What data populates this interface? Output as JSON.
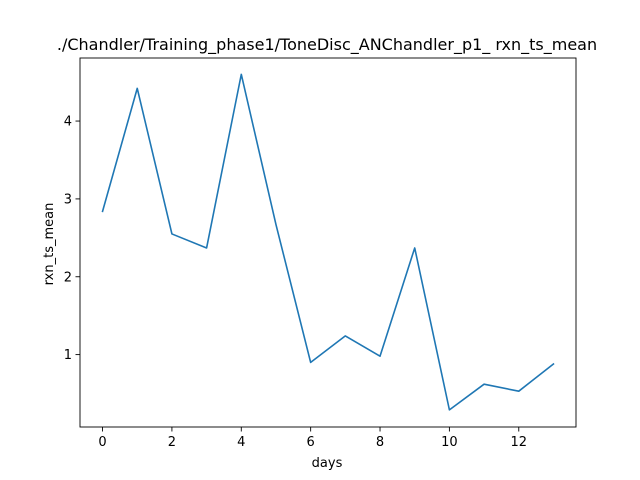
{
  "chart_data": {
    "type": "line",
    "title": "./Chandler/Training_phase1/ToneDisc_ANChandler_p1_ rxn_ts_mean",
    "xlabel": "days",
    "ylabel": "rxn_ts_mean",
    "xlim": [
      -0.65,
      13.65
    ],
    "ylim": [
      0.07,
      4.81
    ],
    "x_ticks": [
      0,
      2,
      4,
      6,
      8,
      10,
      12
    ],
    "y_ticks": [
      1,
      2,
      3,
      4
    ],
    "grid": false,
    "series": [
      {
        "color": "#1f77b4",
        "x": [
          0,
          1,
          2,
          3,
          4,
          5,
          6,
          7,
          8,
          9,
          10,
          11,
          12,
          13
        ],
        "y": [
          2.84,
          4.42,
          2.55,
          2.37,
          4.6,
          2.67,
          0.9,
          1.24,
          0.98,
          2.37,
          0.29,
          0.62,
          0.53,
          0.88
        ]
      }
    ]
  }
}
